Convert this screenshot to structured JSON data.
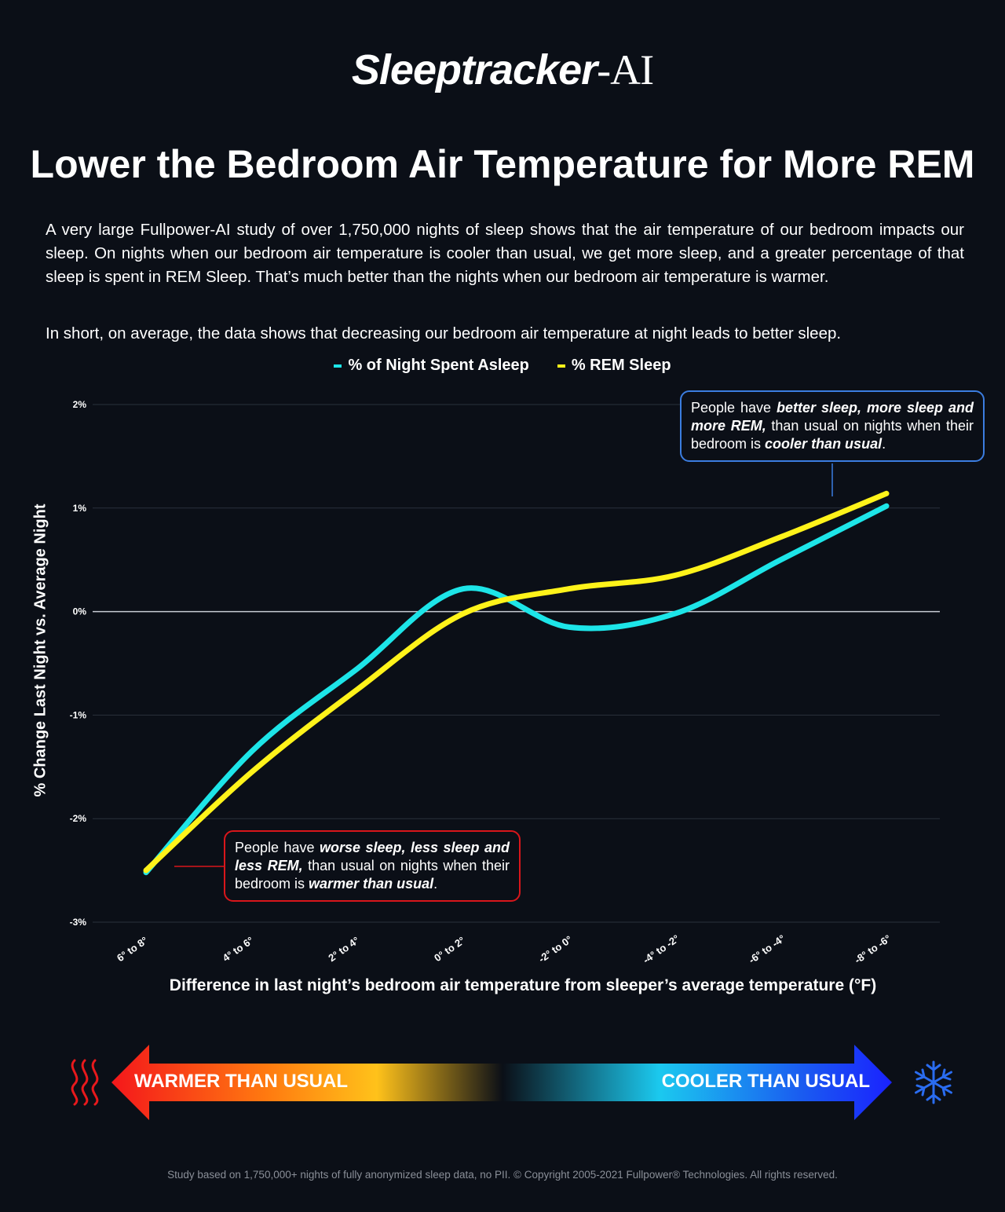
{
  "brand": {
    "name_part1": "Sleeptracker",
    "name_part2": "-AI"
  },
  "title": "Lower the Bedroom Air Temperature for More REM",
  "intro": {
    "paragraph1": "A very large Fullpower-AI study of over 1,750,000 nights of sleep shows that the air temperature of our bedroom impacts our sleep. On nights when our bedroom air temperature is cooler than usual, we get more sleep, and a greater percentage of that sleep is spent in REM Sleep. That’s much better than the nights when our bedroom air temperature is warmer.",
    "paragraph2": "In short, on average, the data shows that decreasing our bedroom air temperature at night leads to better sleep."
  },
  "callouts": {
    "cool": {
      "t1": "People have ",
      "b1": "better sleep, more sleep and more REM,",
      "t2": " than usual on nights when their bedroom is ",
      "b2": "cooler than usual",
      "t3": "."
    },
    "warm": {
      "t1": "People have ",
      "b1": "worse sleep, less sleep and less REM,",
      "t2": " than usual on nights when their bedroom is ",
      "b2": "warmer than usual",
      "t3": "."
    }
  },
  "scale": {
    "warmer_label": "WARMER THAN USUAL",
    "cooler_label": "COOLER THAN USUAL"
  },
  "footer": "Study based on 1,750,000+ nights of fully anonymized sleep data, no PII. © Copyright 2005-2021 Fullpower® Technologies. All rights reserved.",
  "colors": {
    "asleep": "#1de5e8",
    "rem": "#fff31a",
    "cool_border": "#3b7de0",
    "warm_border": "#d9161b"
  },
  "icons": {
    "heat": "heat-waves-icon",
    "cold": "snowflake-icon"
  },
  "chart_data": {
    "type": "line",
    "title": "",
    "xlabel": "Difference in last night’s bedroom air temperature from sleeper’s average temperature (°F)",
    "ylabel": "% Change Last Night vs. Average Night",
    "categories": [
      "6° to 8°",
      "4° to 6°",
      "2° to 4°",
      "0° to 2°",
      "-2° to 0°",
      "-4° to -2°",
      "-6° to -4°",
      "-8° to -6°"
    ],
    "series": [
      {
        "name": "% of Night Spent Asleep",
        "values": [
          -2.52,
          -1.35,
          -0.55,
          0.22,
          -0.15,
          -0.02,
          0.5,
          1.02
        ]
      },
      {
        "name": "% REM Sleep",
        "values": [
          -2.5,
          -1.55,
          -0.75,
          -0.02,
          0.22,
          0.35,
          0.72,
          1.14
        ]
      }
    ],
    "yticks": [
      2,
      1,
      0,
      -1,
      -2,
      -3
    ],
    "ytick_labels": [
      "2%",
      "1%",
      "0%",
      "-1%",
      "-2%",
      "-3%"
    ],
    "ylim": [
      -3,
      2
    ],
    "grid": true,
    "legend": "top-center"
  }
}
